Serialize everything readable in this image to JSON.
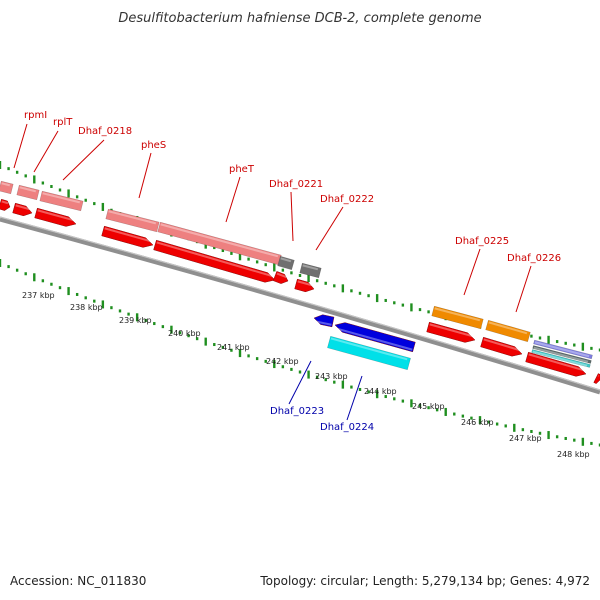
{
  "title": "Desulfitobacterium hafniense DCB-2, complete genome",
  "footer": {
    "accession": "Accession: NC_011830",
    "summary": "Topology: circular; Length: 5,279,134 bp; Genes: 4,972"
  },
  "colors": {
    "backbone": "#8f8f8f",
    "tick": "#1f8f1f",
    "gene_red": "#ee0000",
    "gene_pink": "#ee8080",
    "gene_gray": "#6f6f6f",
    "gene_blue": "#0000dd",
    "gene_cyan": "#00e0e8",
    "gene_orange": "#f08a00",
    "label_red": "#cc0000",
    "label_blue": "#0000aa"
  },
  "scale_labels": [
    "237 kbp",
    "238 kbp",
    "239 kbp",
    "240 kbp",
    "241 kbp",
    "242 kbp",
    "243 kbp",
    "244 kbp",
    "245 kbp",
    "246 kbp",
    "247 kbp",
    "248 kbp"
  ],
  "gene_labels": [
    {
      "text": "rpmI",
      "color": "red"
    },
    {
      "text": "rplT",
      "color": "red"
    },
    {
      "text": "Dhaf_0218",
      "color": "red"
    },
    {
      "text": "pheS",
      "color": "red"
    },
    {
      "text": "pheT",
      "color": "red"
    },
    {
      "text": "Dhaf_0221",
      "color": "red"
    },
    {
      "text": "Dhaf_0222",
      "color": "red"
    },
    {
      "text": "Dhaf_0225",
      "color": "red"
    },
    {
      "text": "Dhaf_0226",
      "color": "red"
    },
    {
      "text": "Dhaf_0223",
      "color": "blue"
    },
    {
      "text": "Dhaf_0224",
      "color": "blue"
    }
  ]
}
